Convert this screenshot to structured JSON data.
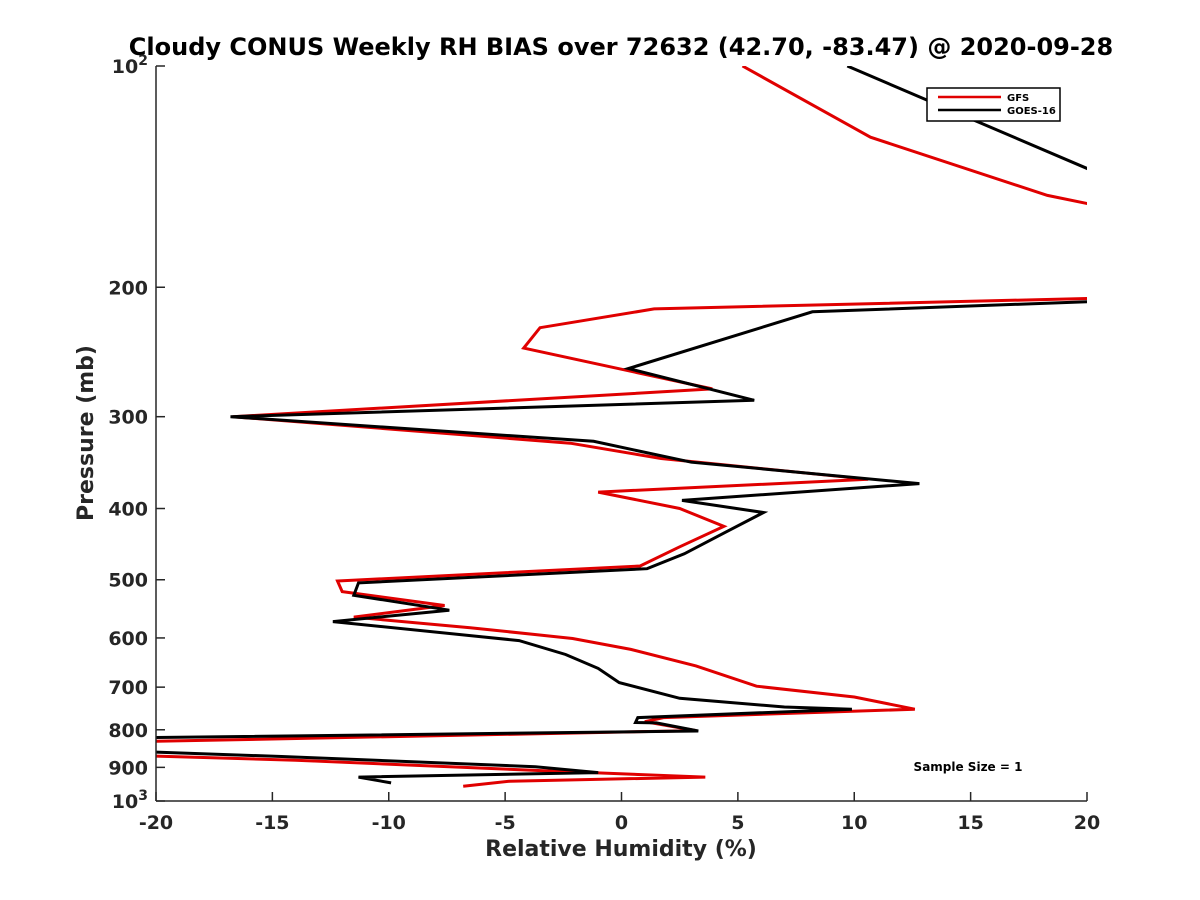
{
  "chart_data": {
    "type": "line",
    "title": "Cloudy CONUS Weekly RH BIAS over 72632 (42.70, -83.47) @ 2020-09-28",
    "xlabel": "Relative Humidity (%)",
    "ylabel": "Pressure (mb)",
    "xlim": [
      -20,
      20
    ],
    "ylim": [
      100,
      1000
    ],
    "yscale": "log",
    "y_reversed": true,
    "x_ticks": [
      "-20",
      "-15",
      "-10",
      "-5",
      "0",
      "5",
      "10",
      "15",
      "20"
    ],
    "y_ticks": [
      {
        "value": 100,
        "base": "10",
        "exp": "2"
      },
      {
        "value": 200,
        "label": "200"
      },
      {
        "value": 300,
        "label": "300"
      },
      {
        "value": 400,
        "label": "400"
      },
      {
        "value": 500,
        "label": "500"
      },
      {
        "value": 600,
        "label": "600"
      },
      {
        "value": 700,
        "label": "700"
      },
      {
        "value": 800,
        "label": "800"
      },
      {
        "value": 900,
        "label": "900"
      },
      {
        "value": 1000,
        "base": "10",
        "exp": "3"
      }
    ],
    "legend_position": "top-right",
    "grid": false,
    "annotation": "Sample Size = 1",
    "series": [
      {
        "name": "GFS",
        "color": "#e00000",
        "points": [
          [
            5.2,
            100
          ],
          [
            10.7,
            125
          ],
          [
            18.3,
            150
          ],
          [
            20.5,
            155
          ],
          [
            20.5,
            207
          ],
          [
            1.4,
            214
          ],
          [
            -3.5,
            227
          ],
          [
            -4.2,
            242
          ],
          [
            3.9,
            275
          ],
          [
            -16.7,
            300
          ],
          [
            -2.2,
            326
          ],
          [
            1.7,
            342
          ],
          [
            10.6,
            365
          ],
          [
            -1.0,
            380
          ],
          [
            2.5,
            400
          ],
          [
            4.4,
            423
          ],
          [
            2.5,
            451
          ],
          [
            0.8,
            479
          ],
          [
            -12.2,
            502
          ],
          [
            -12.0,
            519
          ],
          [
            -7.6,
            542
          ],
          [
            -11.5,
            562
          ],
          [
            -6.5,
            581
          ],
          [
            -2.1,
            601
          ],
          [
            0.4,
            622
          ],
          [
            3.2,
            655
          ],
          [
            5.8,
            698
          ],
          [
            10.0,
            722
          ],
          [
            12.6,
            750
          ],
          [
            1.8,
            770
          ],
          [
            1.0,
            780
          ],
          [
            3.2,
            802
          ],
          [
            -20.5,
            830
          ],
          [
            -20.5,
            868
          ],
          [
            -14.0,
            880
          ],
          [
            -3.2,
            910
          ],
          [
            3.6,
            928
          ],
          [
            -4.8,
            940
          ],
          [
            -6.8,
            955
          ]
        ]
      },
      {
        "name": "GOES-16",
        "color": "#000000",
        "points": [
          [
            9.7,
            100
          ],
          [
            20.5,
            140
          ],
          [
            20.5,
            209
          ],
          [
            8.2,
            216
          ],
          [
            0.3,
            258
          ],
          [
            5.7,
            285
          ],
          [
            -16.8,
            300
          ],
          [
            -1.2,
            324
          ],
          [
            3.0,
            346
          ],
          [
            12.8,
            370
          ],
          [
            2.6,
            390
          ],
          [
            6.1,
            405
          ],
          [
            4.4,
            432
          ],
          [
            2.7,
            461
          ],
          [
            1.1,
            483
          ],
          [
            -11.3,
            505
          ],
          [
            -11.5,
            525
          ],
          [
            -7.4,
            550
          ],
          [
            -12.4,
            570
          ],
          [
            -4.4,
            605
          ],
          [
            -2.4,
            632
          ],
          [
            -1.0,
            660
          ],
          [
            -0.1,
            690
          ],
          [
            2.5,
            725
          ],
          [
            7.0,
            745
          ],
          [
            9.9,
            750
          ],
          [
            0.7,
            770
          ],
          [
            0.6,
            782
          ],
          [
            1.5,
            783
          ],
          [
            3.3,
            803
          ],
          [
            -20.5,
            820
          ],
          [
            -20.5,
            857
          ],
          [
            -14.6,
            870
          ],
          [
            -3.7,
            898
          ],
          [
            -1.0,
            915
          ],
          [
            -11.3,
            928
          ],
          [
            -9.9,
            945
          ]
        ]
      }
    ]
  }
}
